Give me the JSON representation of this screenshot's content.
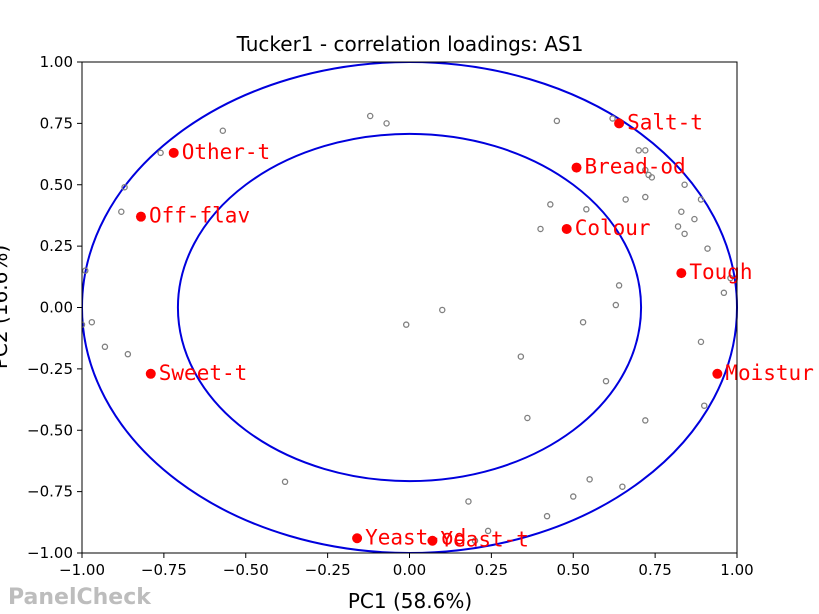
{
  "chart_data": {
    "type": "scatter",
    "title": "Tucker1 - correlation loadings: AS1",
    "xlabel": "PC1 (58.6%)",
    "ylabel": "PC2 (16.6%)",
    "xlim": [
      -1.0,
      1.0
    ],
    "ylim": [
      -1.0,
      1.0
    ],
    "xticks": [
      "−1.00",
      "−0.75",
      "−0.50",
      "−0.25",
      "0.00",
      "0.25",
      "0.50",
      "0.75",
      "1.00"
    ],
    "yticks": [
      "−1.00",
      "−0.75",
      "−0.50",
      "−0.25",
      "0.00",
      "0.25",
      "0.50",
      "0.75",
      "1.00"
    ],
    "grid": false,
    "circles": [
      {
        "radius": 1.0,
        "color": "#0000dd"
      },
      {
        "radius": 0.7071,
        "color": "#0000dd"
      }
    ],
    "attributes": [
      {
        "name": "Salt-t",
        "x": 0.64,
        "y": 0.75
      },
      {
        "name": "Other-t",
        "x": -0.72,
        "y": 0.63
      },
      {
        "name": "Bread-od",
        "x": 0.51,
        "y": 0.57
      },
      {
        "name": "Off-flav",
        "x": -0.82,
        "y": 0.37
      },
      {
        "name": "Colour",
        "x": 0.48,
        "y": 0.32
      },
      {
        "name": "Tough",
        "x": 0.83,
        "y": 0.14
      },
      {
        "name": "Sweet-t",
        "x": -0.79,
        "y": -0.27
      },
      {
        "name": "Moistur",
        "x": 0.94,
        "y": -0.27
      },
      {
        "name": "Yeast-od",
        "x": -0.16,
        "y": -0.94
      },
      {
        "name": "Yeast-t",
        "x": 0.07,
        "y": -0.95
      }
    ],
    "assessors": [
      {
        "x": -0.12,
        "y": 0.78
      },
      {
        "x": -0.07,
        "y": 0.75
      },
      {
        "x": -0.57,
        "y": 0.72
      },
      {
        "x": -0.76,
        "y": 0.63
      },
      {
        "x": -0.87,
        "y": 0.49
      },
      {
        "x": -0.88,
        "y": 0.39
      },
      {
        "x": -0.99,
        "y": 0.15
      },
      {
        "x": -1.0,
        "y": -0.07
      },
      {
        "x": -0.97,
        "y": -0.06
      },
      {
        "x": -0.93,
        "y": -0.16
      },
      {
        "x": -0.86,
        "y": -0.19
      },
      {
        "x": -0.38,
        "y": -0.71
      },
      {
        "x": -0.01,
        "y": -0.07
      },
      {
        "x": 0.1,
        "y": -0.01
      },
      {
        "x": 0.34,
        "y": -0.2
      },
      {
        "x": 0.36,
        "y": -0.45
      },
      {
        "x": 0.18,
        "y": -0.79
      },
      {
        "x": 0.24,
        "y": -0.91
      },
      {
        "x": 0.2,
        "y": -0.95
      },
      {
        "x": 0.42,
        "y": -0.85
      },
      {
        "x": 0.5,
        "y": -0.77
      },
      {
        "x": 0.55,
        "y": -0.7
      },
      {
        "x": 0.65,
        "y": -0.73
      },
      {
        "x": 0.6,
        "y": -0.3
      },
      {
        "x": 0.72,
        "y": -0.46
      },
      {
        "x": 0.53,
        "y": -0.06
      },
      {
        "x": 0.63,
        "y": 0.01
      },
      {
        "x": 0.64,
        "y": 0.09
      },
      {
        "x": 0.4,
        "y": 0.32
      },
      {
        "x": 0.43,
        "y": 0.42
      },
      {
        "x": 0.54,
        "y": 0.4
      },
      {
        "x": 0.45,
        "y": 0.76
      },
      {
        "x": 0.62,
        "y": 0.77
      },
      {
        "x": 0.7,
        "y": 0.64
      },
      {
        "x": 0.72,
        "y": 0.64
      },
      {
        "x": 0.72,
        "y": 0.56
      },
      {
        "x": 0.73,
        "y": 0.54
      },
      {
        "x": 0.74,
        "y": 0.53
      },
      {
        "x": 0.66,
        "y": 0.44
      },
      {
        "x": 0.72,
        "y": 0.45
      },
      {
        "x": 0.84,
        "y": 0.5
      },
      {
        "x": 0.89,
        "y": 0.44
      },
      {
        "x": 0.83,
        "y": 0.39
      },
      {
        "x": 0.87,
        "y": 0.36
      },
      {
        "x": 0.82,
        "y": 0.33
      },
      {
        "x": 0.84,
        "y": 0.3
      },
      {
        "x": 0.91,
        "y": 0.24
      },
      {
        "x": 0.98,
        "y": 0.12
      },
      {
        "x": 0.96,
        "y": 0.06
      },
      {
        "x": 0.89,
        "y": -0.14
      },
      {
        "x": 0.9,
        "y": -0.4
      }
    ],
    "attribute_color": "#ff0000",
    "assessor_color": "#808080"
  },
  "watermark": "PanelCheck"
}
